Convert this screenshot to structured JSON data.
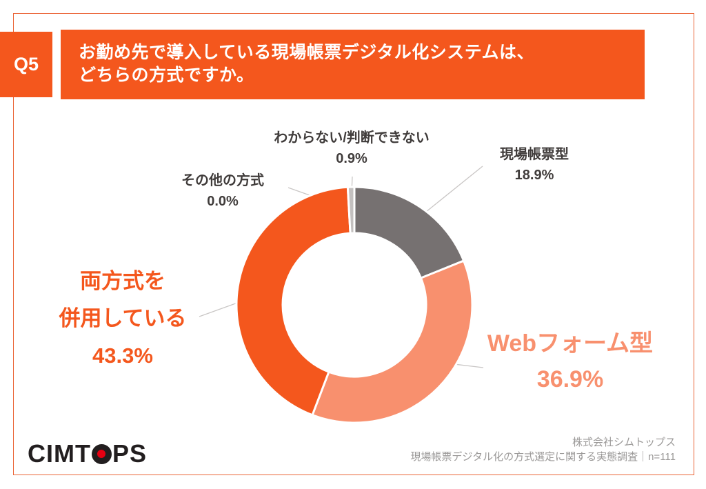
{
  "page": {
    "question_number": "Q5",
    "title_line1": "お勤め先で導入している現場帳票デジタル化システムは、",
    "title_line2": "どちらの方式ですか。",
    "accent_color": "#f4571d"
  },
  "chart_data": {
    "type": "pie",
    "donut": true,
    "start_angle_deg": 0,
    "direction": "clockwise",
    "unit": "%",
    "title": "お勤め先で導入している現場帳票デジタル化システムは、どちらの方式ですか。",
    "categories": [
      "現場帳票型",
      "Webフォーム型",
      "両方式を併用している",
      "その他の方式",
      "わからない/判断できない"
    ],
    "values": [
      18.9,
      36.9,
      43.3,
      0.0,
      0.9
    ],
    "colors": [
      "#767171",
      "#f8906e",
      "#f4571d",
      "#f4571d",
      "#c3c0bf"
    ],
    "labels": {
      "genba": {
        "name": "現場帳票型",
        "pct": "18.9%"
      },
      "web": {
        "name": "Webフォーム型",
        "pct": "36.9%"
      },
      "ryoho": {
        "line1": "両方式を",
        "line2": "併用している",
        "pct": "43.3%"
      },
      "sonota": {
        "name": "その他の方式",
        "pct": "0.0%"
      },
      "wakaranai": {
        "name": "わからない/判断できない",
        "pct": "0.9%"
      }
    }
  },
  "footer": {
    "logo_text_left": "CIMT",
    "logo_text_right": "PS",
    "credit_line1": "株式会社シムトップス",
    "credit_line2": "現場帳票デジタル化の方式選定に関する実態調査｜n=111"
  }
}
